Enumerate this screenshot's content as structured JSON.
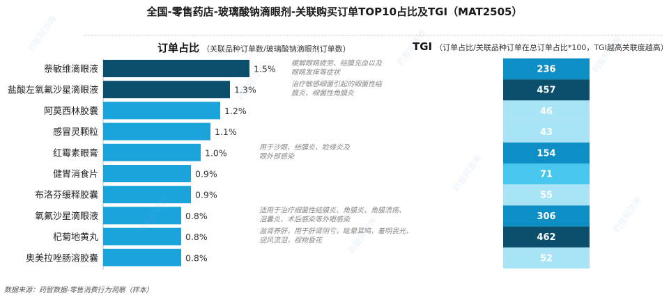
{
  "title": "全国-零售药店-玻璃酸钠滴眼剂-关联购买订单TOP10占比及TGI（MAT2505）",
  "bar_header": {
    "main": "订单占比",
    "note": "（关联品种订单数/玻璃酸钠滴眼剂订单数）"
  },
  "tgi_header": {
    "main": "TGI",
    "note": "（订单占比/关联品种订单在总订单占比*100，TGI越高关联度越高）"
  },
  "footer": "数据来源：药智数据-零售消费行为洞察（样本）",
  "watermark": "药智网咨询",
  "chart_data": {
    "type": "bar",
    "categories": [
      "萘敏维滴眼液",
      "盐酸左氧氟沙星滴眼液",
      "阿莫西林胶囊",
      "感冒灵颗粒",
      "红霉素眼膏",
      "健胃消食片",
      "布洛芬缓释胶囊",
      "氧氟沙星滴眼液",
      "杞菊地黄丸",
      "奥美拉唑肠溶胶囊"
    ],
    "series": [
      {
        "values": [
          1.5,
          1.3,
          1.2,
          1.1,
          1.0,
          0.9,
          0.9,
          0.8,
          0.8,
          0.8
        ],
        "unit": "%"
      },
      {
        "values": [
          236,
          457,
          46,
          43,
          154,
          71,
          55,
          306,
          462,
          52
        ]
      }
    ],
    "value_labels": [
      "1.5%",
      "1.3%",
      "1.2%",
      "1.1%",
      "1.0%",
      "0.9%",
      "0.9%",
      "0.8%",
      "0.8%",
      "0.8%"
    ],
    "annotations": [
      {
        "row": 0,
        "text": [
          "缓解眼睛疲劳、结膜充血以及",
          "眼睛发痒等症状"
        ]
      },
      {
        "row": 1,
        "text": [
          "治疗敏感细菌引起的细菌性结",
          "膜炎、细菌性角膜炎"
        ]
      },
      {
        "row": 4,
        "text": [
          "用于沙眼、结膜炎、睑缘炎及",
          "眼外部感染"
        ]
      },
      {
        "row": 7,
        "text": [
          "适用于治疗细菌性结膜炎、角膜炎、角膜溃疡、",
          "泪囊炎、术后感染等外眼感染"
        ]
      },
      {
        "row": 8,
        "text": [
          "滋肾养肝，用于肝肾阴亏，眩晕耳鸣，羞明畏光，",
          "迎风流泪，视物昏花"
        ]
      }
    ],
    "colors": {
      "bar_dark": "#0b4f6c",
      "bar_light": "#1ba3dc",
      "tgi_high": "#0b4f6c",
      "tgi_mid": "#0d8fc6",
      "tgi_low": "#49c6ee",
      "tgi_lowest": "#a9e3f6"
    }
  }
}
